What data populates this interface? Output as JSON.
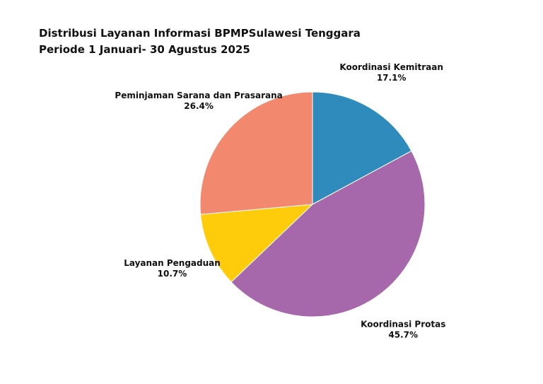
{
  "chart_data": {
    "type": "pie",
    "title_lines": [
      "Distribusi Layanan Informasi BPMPSulawesi Tenggara",
      "Periode 1 Januari- 30 Agustus 2025"
    ],
    "start_angle_deg": 90,
    "direction": "clockwise",
    "slices": [
      {
        "label": "Koordinasi Kemitraan",
        "value": 17.1,
        "display": "17.1%",
        "color": "#2e8bbb"
      },
      {
        "label": "Koordinasi Protas",
        "value": 45.7,
        "display": "45.7%",
        "color": "#a768ab"
      },
      {
        "label": "Layanan Pengaduan",
        "value": 10.7,
        "display": "10.7%",
        "color": "#fecc0a"
      },
      {
        "label": "Peminjaman Sarana dan Prasarana",
        "value": 26.4,
        "display": "26.4%",
        "color": "#f2886e"
      }
    ]
  }
}
